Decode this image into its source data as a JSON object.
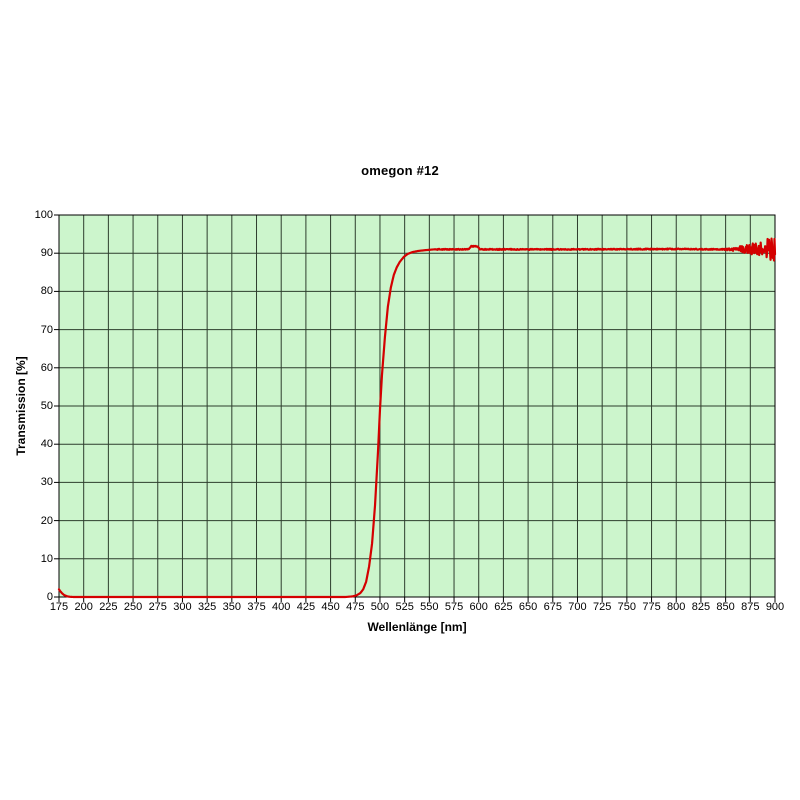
{
  "page": {
    "background_color": "#ffffff"
  },
  "chart_data": {
    "type": "line",
    "title": "omegon #12",
    "xlabel": "Wellenlänge [nm]",
    "ylabel": "Transmission [%]",
    "xlim": [
      175,
      900
    ],
    "ylim": [
      0,
      100
    ],
    "grid": true,
    "legend": "none",
    "x_ticks": [
      175,
      200,
      225,
      250,
      275,
      300,
      325,
      350,
      375,
      400,
      425,
      450,
      475,
      500,
      525,
      550,
      575,
      600,
      625,
      650,
      675,
      700,
      725,
      750,
      775,
      800,
      825,
      850,
      875,
      900
    ],
    "y_ticks": [
      0,
      10,
      20,
      30,
      40,
      50,
      60,
      70,
      80,
      90,
      100
    ],
    "plot_bg_color": "#ccf5cc",
    "grid_color": "#2d3d2d",
    "axis_color": "#000000",
    "line_color": "#d40000",
    "series": [
      {
        "name": "Transmission",
        "color": "#d40000",
        "points": [
          [
            175,
            2.0
          ],
          [
            176,
            1.6
          ],
          [
            178,
            1.0
          ],
          [
            180,
            0.55
          ],
          [
            183,
            0.2
          ],
          [
            186,
            0.05
          ],
          [
            190,
            0
          ],
          [
            300,
            0
          ],
          [
            400,
            0
          ],
          [
            465,
            0
          ],
          [
            472,
            0.15
          ],
          [
            476,
            0.4
          ],
          [
            480,
            1.0
          ],
          [
            483,
            2.0
          ],
          [
            486,
            4.0
          ],
          [
            489,
            8.0
          ],
          [
            492,
            14
          ],
          [
            495,
            24
          ],
          [
            498,
            38
          ],
          [
            500,
            49
          ],
          [
            502,
            58
          ],
          [
            505,
            68
          ],
          [
            508,
            76
          ],
          [
            511,
            81
          ],
          [
            514,
            84.3
          ],
          [
            517,
            86.3
          ],
          [
            520,
            87.7
          ],
          [
            524,
            89.0
          ],
          [
            528,
            89.8
          ],
          [
            533,
            90.3
          ],
          [
            539,
            90.6
          ],
          [
            546,
            90.8
          ],
          [
            555,
            91.0
          ],
          [
            590,
            91.0
          ],
          [
            592,
            91.8
          ],
          [
            599,
            91.8
          ],
          [
            601,
            91.0
          ],
          [
            700,
            91.0
          ],
          [
            800,
            91.1
          ],
          [
            850,
            91.0
          ],
          [
            900,
            91.2
          ]
        ]
      }
    ],
    "noise": {
      "flat_noise_start_nm": 556,
      "flat_amplitude_pct": 0.13,
      "ramp_start_nm": 845,
      "end_nm": 900,
      "max_amplitude_pct": 3.2
    }
  }
}
